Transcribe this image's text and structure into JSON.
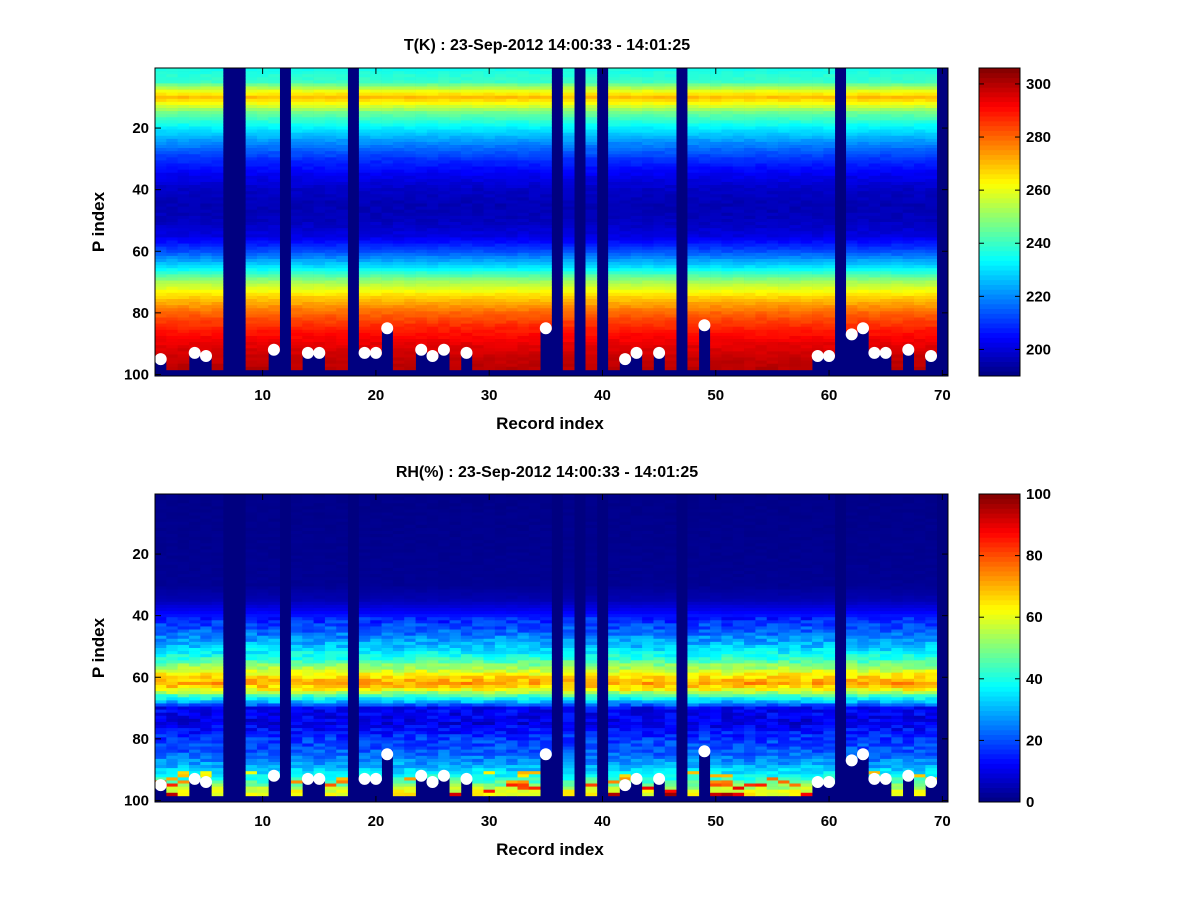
{
  "chart_data": [
    {
      "type": "heatmap",
      "title": "T(K) : 23-Sep-2012 14:00:33 - 14:01:25",
      "xlabel": "Record index",
      "ylabel": "P index",
      "xlim": [
        0.5,
        70.5
      ],
      "ylim": [
        0.5,
        100.5
      ],
      "y_reversed": true,
      "xticks": [
        10,
        20,
        30,
        40,
        50,
        60,
        70
      ],
      "yticks": [
        20,
        40,
        60,
        80,
        100
      ],
      "colormap": "jet",
      "clim": [
        190,
        306
      ],
      "colorbar_ticks": [
        200,
        220,
        240,
        260,
        280,
        300
      ],
      "missing_records": [
        7,
        8,
        12,
        18,
        36,
        38,
        40,
        47,
        61,
        70
      ],
      "profile_p_index": [
        1,
        5,
        8,
        10,
        12,
        15,
        20,
        25,
        30,
        35,
        40,
        45,
        50,
        55,
        60,
        65,
        70,
        75,
        80,
        85,
        90,
        95,
        99
      ],
      "profile_value": [
        236,
        240,
        260,
        270,
        262,
        246,
        232,
        220,
        210,
        203,
        198,
        196,
        197,
        201,
        213,
        230,
        252,
        268,
        280,
        288,
        294,
        298,
        300
      ],
      "surface_markers": [
        {
          "record": 1,
          "p_index": 95
        },
        {
          "record": 4,
          "p_index": 93
        },
        {
          "record": 5,
          "p_index": 94
        },
        {
          "record": 11,
          "p_index": 92
        },
        {
          "record": 14,
          "p_index": 93
        },
        {
          "record": 15,
          "p_index": 93
        },
        {
          "record": 19,
          "p_index": 93
        },
        {
          "record": 20,
          "p_index": 93
        },
        {
          "record": 21,
          "p_index": 85
        },
        {
          "record": 24,
          "p_index": 92
        },
        {
          "record": 25,
          "p_index": 94
        },
        {
          "record": 26,
          "p_index": 92
        },
        {
          "record": 28,
          "p_index": 93
        },
        {
          "record": 35,
          "p_index": 85
        },
        {
          "record": 42,
          "p_index": 95
        },
        {
          "record": 43,
          "p_index": 93
        },
        {
          "record": 45,
          "p_index": 93
        },
        {
          "record": 49,
          "p_index": 84
        },
        {
          "record": 59,
          "p_index": 94
        },
        {
          "record": 60,
          "p_index": 94
        },
        {
          "record": 62,
          "p_index": 87
        },
        {
          "record": 63,
          "p_index": 85
        },
        {
          "record": 64,
          "p_index": 93
        },
        {
          "record": 65,
          "p_index": 93
        },
        {
          "record": 67,
          "p_index": 92
        },
        {
          "record": 69,
          "p_index": 94
        }
      ]
    },
    {
      "type": "heatmap",
      "title": "RH(%) : 23-Sep-2012 14:00:33 - 14:01:25",
      "xlabel": "Record index",
      "ylabel": "P index",
      "xlim": [
        0.5,
        70.5
      ],
      "ylim": [
        0.5,
        100.5
      ],
      "y_reversed": true,
      "xticks": [
        10,
        20,
        30,
        40,
        50,
        60,
        70
      ],
      "yticks": [
        20,
        40,
        60,
        80,
        100
      ],
      "colormap": "jet",
      "clim": [
        0,
        100
      ],
      "colorbar_ticks": [
        0,
        20,
        40,
        60,
        80,
        100
      ],
      "missing_records": [
        7,
        8,
        12,
        18,
        36,
        38,
        40,
        47,
        61,
        70
      ],
      "profile_p_index": [
        1,
        30,
        35,
        40,
        45,
        50,
        54,
        58,
        60,
        62,
        64,
        66,
        68,
        70,
        75,
        80,
        85,
        88,
        91,
        94,
        97,
        99
      ],
      "profile_value": [
        1,
        2,
        5,
        14,
        22,
        32,
        42,
        58,
        66,
        72,
        62,
        45,
        30,
        12,
        10,
        18,
        22,
        28,
        35,
        45,
        60,
        65
      ],
      "surface_markers": [
        {
          "record": 1,
          "p_index": 95
        },
        {
          "record": 4,
          "p_index": 93
        },
        {
          "record": 5,
          "p_index": 94
        },
        {
          "record": 11,
          "p_index": 92
        },
        {
          "record": 14,
          "p_index": 93
        },
        {
          "record": 15,
          "p_index": 93
        },
        {
          "record": 19,
          "p_index": 93
        },
        {
          "record": 20,
          "p_index": 93
        },
        {
          "record": 21,
          "p_index": 85
        },
        {
          "record": 24,
          "p_index": 92
        },
        {
          "record": 25,
          "p_index": 94
        },
        {
          "record": 26,
          "p_index": 92
        },
        {
          "record": 28,
          "p_index": 93
        },
        {
          "record": 35,
          "p_index": 85
        },
        {
          "record": 42,
          "p_index": 95
        },
        {
          "record": 43,
          "p_index": 93
        },
        {
          "record": 45,
          "p_index": 93
        },
        {
          "record": 49,
          "p_index": 84
        },
        {
          "record": 59,
          "p_index": 94
        },
        {
          "record": 60,
          "p_index": 94
        },
        {
          "record": 62,
          "p_index": 87
        },
        {
          "record": 63,
          "p_index": 85
        },
        {
          "record": 64,
          "p_index": 93
        },
        {
          "record": 65,
          "p_index": 93
        },
        {
          "record": 67,
          "p_index": 92
        },
        {
          "record": 69,
          "p_index": 94
        }
      ]
    }
  ]
}
